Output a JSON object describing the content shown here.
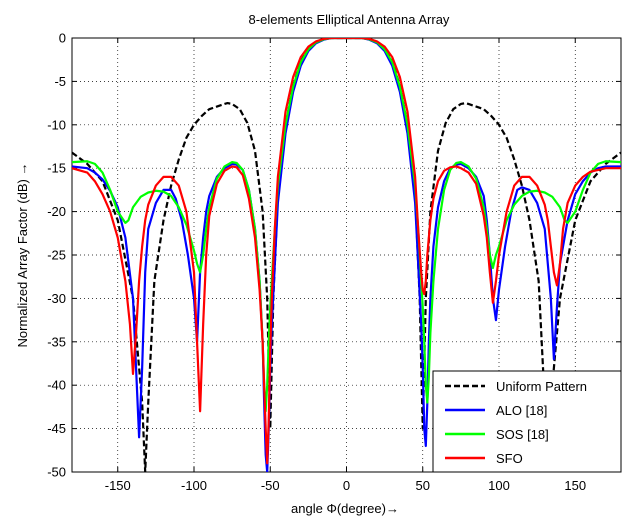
{
  "chart_data": {
    "type": "line",
    "title": "8-elements Elliptical Antenna Array",
    "xlabel": "angle Φ(degree)→",
    "ylabel": "Normalized Array Factor (dB) →",
    "xlim": [
      -180,
      180
    ],
    "ylim": [
      -50,
      0
    ],
    "xticks": [
      -150,
      -100,
      -50,
      0,
      50,
      100,
      150
    ],
    "yticks": [
      0,
      -5,
      -10,
      -15,
      -20,
      -25,
      -30,
      -35,
      -40,
      -45,
      -50
    ],
    "grid": true,
    "legend_position": "bottom-right",
    "series": [
      {
        "name": "Uniform Pattern",
        "color": "#000000",
        "dash": "dashed",
        "x": [
          -180,
          -170,
          -160,
          -150,
          -140,
          -134,
          -132,
          -130,
          -126,
          -120,
          -115,
          -110,
          -105,
          -100,
          -95,
          -90,
          -85,
          -80,
          -78,
          -75,
          -70,
          -65,
          -60,
          -55,
          -52,
          -50,
          -48,
          -45,
          -40,
          -35,
          -30,
          -25,
          -20,
          -15,
          -10,
          -5,
          0,
          5,
          10,
          15,
          20,
          25,
          30,
          35,
          40,
          45,
          48,
          50,
          52,
          55,
          60,
          65,
          70,
          75,
          78,
          80,
          85,
          90,
          95,
          100,
          105,
          110,
          115,
          120,
          126,
          130,
          132,
          134,
          140,
          150,
          160,
          170,
          180
        ],
        "y": [
          -13.2,
          -14.5,
          -16.5,
          -21,
          -30,
          -42,
          -50,
          -42,
          -28,
          -21,
          -17,
          -14,
          -11.5,
          -10,
          -9,
          -8.2,
          -7.9,
          -7.6,
          -7.5,
          -7.6,
          -8.2,
          -9.8,
          -13,
          -20,
          -30,
          -45,
          -30,
          -18,
          -10,
          -5.5,
          -2.7,
          -1.2,
          -0.5,
          -0.15,
          0,
          0,
          0,
          0,
          0,
          -0.15,
          -0.5,
          -1.2,
          -2.7,
          -5.5,
          -10,
          -18,
          -30,
          -45,
          -30,
          -20,
          -13,
          -9.8,
          -8.2,
          -7.6,
          -7.5,
          -7.6,
          -7.9,
          -8.2,
          -9,
          -10,
          -11.5,
          -14,
          -17,
          -21,
          -28,
          -42,
          -50,
          -42,
          -30,
          -21,
          -16.5,
          -14.5,
          -13.2
        ]
      },
      {
        "name": "ALO [18]",
        "color": "#0000ff",
        "dash": "solid",
        "x": [
          -180,
          -170,
          -165,
          -160,
          -155,
          -150,
          -145,
          -140,
          -138,
          -136,
          -134,
          -132,
          -130,
          -125,
          -120,
          -115,
          -112,
          -108,
          -104,
          -100,
          -98,
          -96,
          -94,
          -92,
          -90,
          -85,
          -80,
          -75,
          -72,
          -68,
          -64,
          -60,
          -57,
          -55,
          -54,
          -53,
          -52,
          -51,
          -50,
          -49,
          -47,
          -45,
          -40,
          -35,
          -30,
          -25,
          -20,
          -15,
          -10,
          -5,
          0,
          5,
          10,
          15,
          20,
          25,
          30,
          35,
          40,
          45,
          47,
          49,
          50,
          51,
          52,
          53,
          54,
          55,
          57,
          60,
          64,
          68,
          72,
          75,
          80,
          85,
          90,
          92,
          94,
          96,
          98,
          100,
          104,
          108,
          112,
          115,
          120,
          125,
          130,
          132,
          134,
          136,
          138,
          140,
          145,
          150,
          155,
          160,
          165,
          170,
          180
        ],
        "y": [
          -14.8,
          -15,
          -15.5,
          -16.3,
          -17.6,
          -19.5,
          -23,
          -30,
          -38,
          -46,
          -38,
          -27,
          -22,
          -19,
          -17.5,
          -17.5,
          -18.5,
          -21,
          -25,
          -30,
          -35,
          -27,
          -23,
          -20,
          -18.2,
          -16,
          -15,
          -14.5,
          -14.6,
          -15.2,
          -17.5,
          -22,
          -28,
          -35,
          -42,
          -48,
          -50,
          -45,
          -38,
          -33,
          -26,
          -19,
          -11,
          -6.2,
          -3.2,
          -1.5,
          -0.6,
          -0.2,
          0,
          0,
          0,
          0,
          0,
          -0.2,
          -0.6,
          -1.5,
          -3.2,
          -6.2,
          -11,
          -19,
          -26,
          -33,
          -38,
          -45,
          -47,
          -42,
          -35,
          -30,
          -24,
          -19.5,
          -16.5,
          -15,
          -14.6,
          -14.5,
          -15,
          -16,
          -18.2,
          -21,
          -25,
          -30,
          -32.5,
          -29,
          -24,
          -20,
          -17.5,
          -17.2,
          -17.5,
          -19,
          -22,
          -26,
          -30,
          -37,
          -31,
          -26,
          -21,
          -18,
          -16.5,
          -15.5,
          -15,
          -14.8,
          -14.8
        ]
      },
      {
        "name": "SOS [18]",
        "color": "#00ff00",
        "dash": "solid",
        "x": [
          -180,
          -170,
          -165,
          -160,
          -155,
          -150,
          -145,
          -143,
          -140,
          -135,
          -130,
          -125,
          -120,
          -115,
          -110,
          -105,
          -100,
          -98,
          -96,
          -94,
          -92,
          -90,
          -85,
          -80,
          -75,
          -72,
          -68,
          -64,
          -60,
          -57,
          -55,
          -54,
          -53,
          -52,
          -51,
          -50,
          -49,
          -47,
          -45,
          -40,
          -35,
          -30,
          -25,
          -20,
          -15,
          -10,
          -5,
          0,
          5,
          10,
          15,
          20,
          25,
          30,
          35,
          40,
          45,
          47,
          49,
          50,
          51,
          52,
          53,
          54,
          55,
          57,
          60,
          64,
          68,
          72,
          75,
          80,
          85,
          90,
          92,
          94,
          96,
          98,
          100,
          105,
          110,
          115,
          120,
          125,
          130,
          135,
          140,
          143,
          145,
          150,
          155,
          160,
          165,
          170,
          180
        ],
        "y": [
          -14.3,
          -14.2,
          -14.5,
          -15.5,
          -17.5,
          -20,
          -21.3,
          -21,
          -19.5,
          -18.3,
          -17.8,
          -17.6,
          -17.7,
          -18.2,
          -19.5,
          -21.5,
          -24.5,
          -26,
          -27,
          -25,
          -22,
          -19.5,
          -16.2,
          -14.8,
          -14.3,
          -14.4,
          -15.2,
          -17.5,
          -22,
          -28,
          -35,
          -40,
          -43,
          -40,
          -35,
          -31,
          -28,
          -22,
          -17,
          -10,
          -5.6,
          -2.8,
          -1.3,
          -0.5,
          -0.15,
          0,
          0,
          0,
          0,
          0,
          -0.15,
          -0.5,
          -1.3,
          -2.8,
          -5.6,
          -10,
          -17,
          -22,
          -28,
          -31,
          -35,
          -40,
          -42,
          -39,
          -34,
          -28,
          -22,
          -17.5,
          -15.2,
          -14.4,
          -14.3,
          -14.8,
          -16.2,
          -19.5,
          -22,
          -25,
          -26.5,
          -25,
          -24,
          -21,
          -19.2,
          -18.2,
          -17.7,
          -17.6,
          -17.8,
          -18.3,
          -19.5,
          -21,
          -21.3,
          -20,
          -17.5,
          -15.5,
          -14.5,
          -14.2,
          -14.3
        ]
      },
      {
        "name": "SFO",
        "color": "#ff0000",
        "dash": "solid",
        "x": [
          -180,
          -170,
          -165,
          -160,
          -155,
          -150,
          -145,
          -142,
          -140,
          -138,
          -136,
          -134,
          -132,
          -130,
          -125,
          -120,
          -115,
          -110,
          -105,
          -100,
          -98,
          -96,
          -94,
          -92,
          -90,
          -85,
          -80,
          -75,
          -72,
          -68,
          -64,
          -60,
          -57,
          -55,
          -54,
          -53,
          -52,
          -51,
          -50,
          -49,
          -47,
          -45,
          -40,
          -35,
          -30,
          -25,
          -20,
          -15,
          -10,
          -5,
          0,
          5,
          10,
          15,
          20,
          25,
          30,
          35,
          40,
          45,
          47,
          49,
          50,
          51,
          52,
          53,
          54,
          55,
          57,
          60,
          64,
          68,
          72,
          75,
          80,
          85,
          90,
          92,
          94,
          96,
          98,
          100,
          105,
          110,
          115,
          120,
          125,
          130,
          132,
          134,
          136,
          138,
          140,
          142,
          145,
          150,
          155,
          160,
          165,
          170,
          180
        ],
        "y": [
          -15,
          -15.5,
          -16.5,
          -18,
          -20,
          -23,
          -28,
          -33,
          -38.7,
          -34,
          -28,
          -24,
          -21,
          -19.2,
          -17,
          -16,
          -16,
          -17,
          -20,
          -27,
          -35,
          -43,
          -33,
          -25,
          -20.5,
          -16.8,
          -15.3,
          -14.8,
          -14.9,
          -15.8,
          -18.5,
          -23,
          -29,
          -35,
          -40,
          -45,
          -49,
          -44,
          -36,
          -30,
          -22,
          -16,
          -8.5,
          -4.5,
          -2.2,
          -1,
          -0.4,
          -0.1,
          0,
          0,
          0,
          0,
          0,
          -0.1,
          -0.4,
          -1,
          -2.2,
          -4.5,
          -8.5,
          -16,
          -22,
          -27,
          -29,
          -29.5,
          -28,
          -25,
          -23,
          -21,
          -18.5,
          -16.5,
          -15.3,
          -14.9,
          -14.8,
          -15,
          -15.5,
          -16.8,
          -20.5,
          -23,
          -27,
          -30.5,
          -28,
          -25,
          -20,
          -17,
          -16,
          -16,
          -17,
          -19.2,
          -21,
          -24,
          -27,
          -28.5,
          -26,
          -22,
          -19,
          -17,
          -16,
          -15.4,
          -15.2,
          -15,
          -15
        ]
      }
    ]
  }
}
